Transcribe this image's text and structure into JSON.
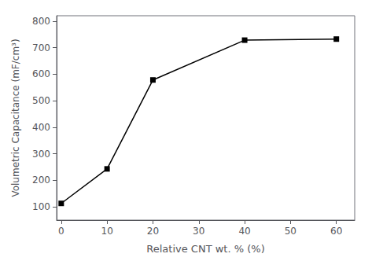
{
  "chart_data": {
    "type": "line",
    "x": [
      0,
      10,
      20,
      40,
      60
    ],
    "values": [
      113,
      243,
      578,
      728,
      732
    ],
    "xlabel": "Relative CNT wt. % (%)",
    "ylabel": "Volumetric Capacitance (mF/cm³)",
    "xlim": [
      -1,
      64
    ],
    "ylim": [
      50,
      820
    ],
    "xticks": [
      0,
      10,
      20,
      30,
      40,
      50,
      60
    ],
    "yticks": [
      100,
      200,
      300,
      400,
      500,
      600,
      700,
      800
    ],
    "color": "#000000",
    "marker": "square",
    "line_style": "solid",
    "grid": false
  }
}
